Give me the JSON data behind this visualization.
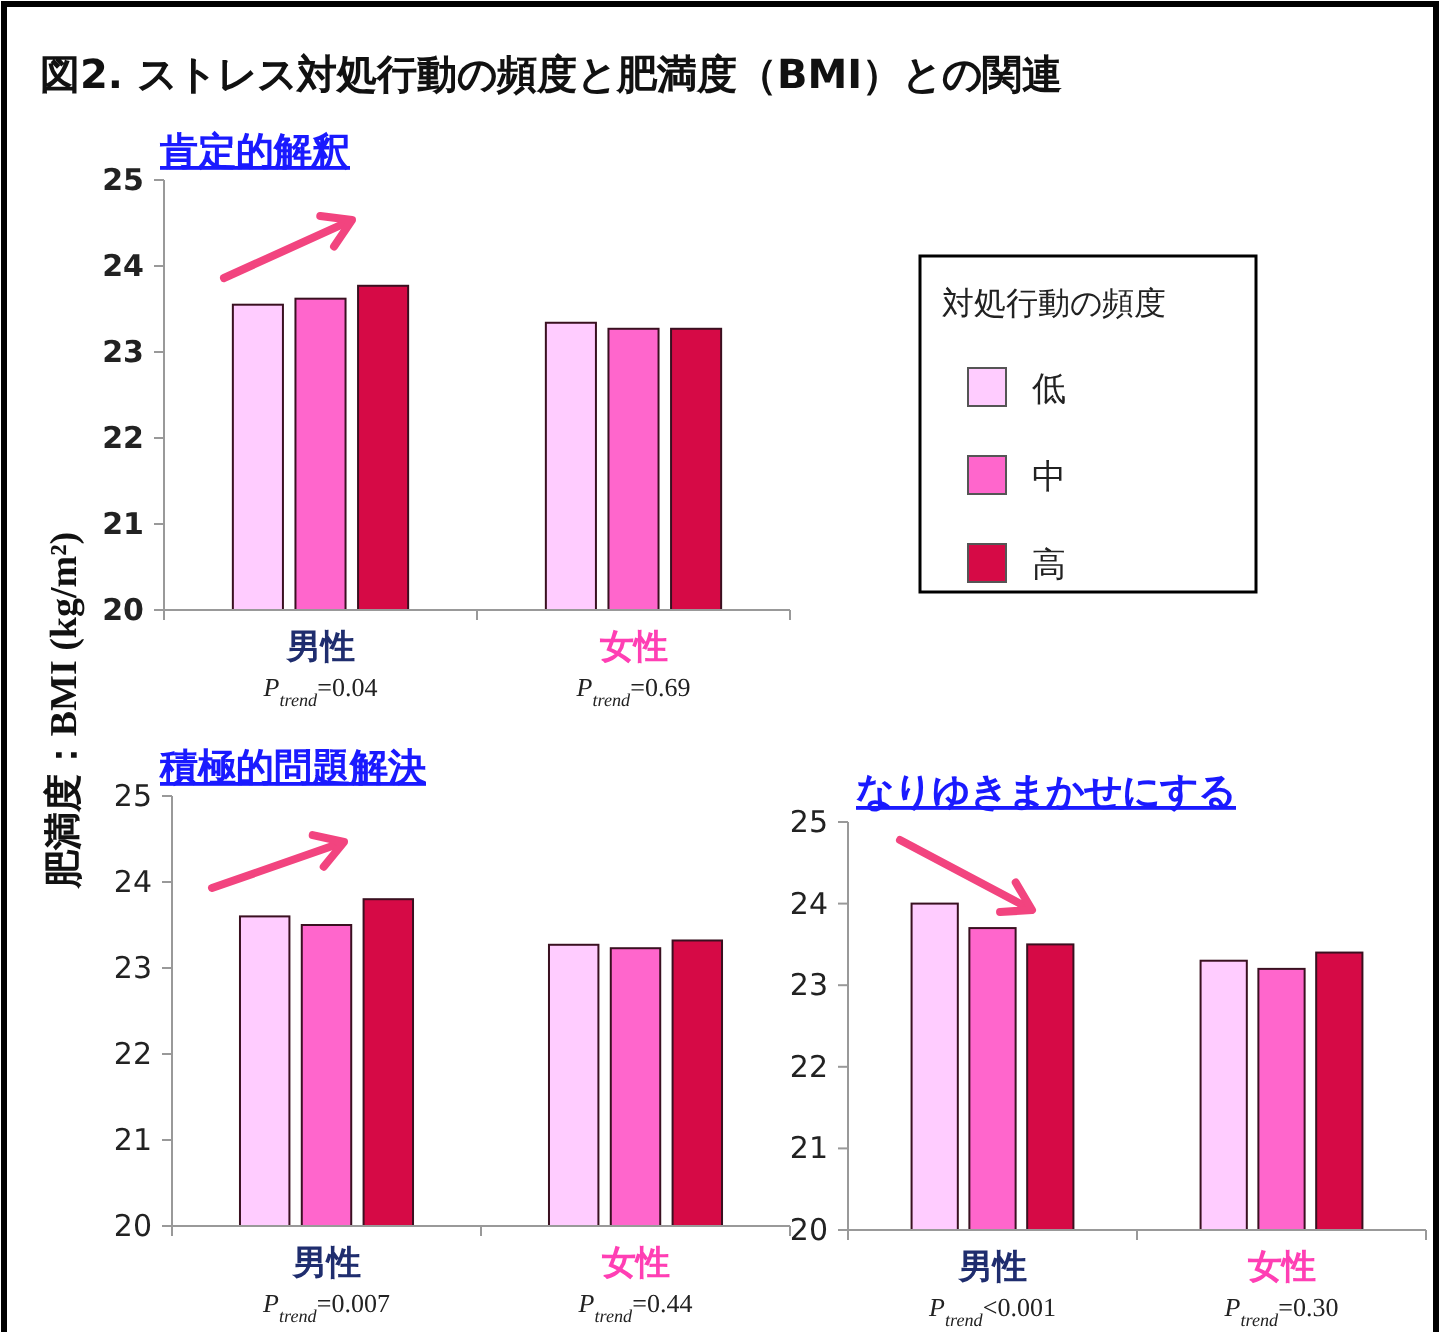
{
  "chart_data": [
    {
      "type": "bar",
      "title": "図2. ストレス対処行動の頻度と肥満度（BMI）との関連",
      "subtitle": "肯定的解釈",
      "ylabel": "肥満度：BMI (kg/m²)",
      "legend_title": "対処行動の頻度",
      "legend": "right",
      "categories": [
        "男性",
        "女性"
      ],
      "series": [
        {
          "name": "低",
          "color": "#ffccff",
          "values": [
            23.55,
            23.34
          ]
        },
        {
          "name": "中",
          "color": "#ff66cc",
          "values": [
            23.62,
            23.27
          ]
        },
        {
          "name": "高",
          "color": "#d60a46",
          "values": [
            23.77,
            23.27
          ]
        }
      ],
      "ylim": [
        20,
        25
      ],
      "yticks": [
        20,
        21,
        22,
        23,
        24,
        25
      ],
      "annotations": [
        "P$_{trend}$=0.04",
        "P$_{trend}$=0.69"
      ]
    },
    {
      "type": "bar",
      "title": "積極的問題解決",
      "categories": [
        "男性",
        "女性"
      ],
      "series": [
        {
          "color": "#ffccff",
          "values": [
            23.6,
            23.27
          ]
        },
        {
          "color": "#ff66cc",
          "values": [
            23.5,
            23.23
          ]
        },
        {
          "color": "#d60a46",
          "values": [
            23.8,
            23.32
          ]
        }
      ],
      "ylim": [
        20,
        25
      ],
      "yticks": [
        20,
        21,
        22,
        23,
        24,
        25
      ],
      "annotations": [
        "P$_{trend}$=0.007",
        "P$_{trend}$=0.44"
      ]
    },
    {
      "type": "bar",
      "title": "なりゆきまかせにする",
      "categories": [
        "男性",
        "女性"
      ],
      "series": [
        {
          "color": "#ffccff",
          "values": [
            24.0,
            23.3
          ]
        },
        {
          "color": "#ff66cc",
          "values": [
            23.7,
            23.2
          ]
        },
        {
          "color": "#d60a46",
          "values": [
            23.5,
            23.4
          ]
        }
      ],
      "ylim": [
        20,
        25
      ],
      "yticks": [
        20,
        21,
        22,
        23,
        24,
        25
      ],
      "annotations": [
        "P$_{trend}$<0.001",
        "P$_{trend}$=0.30"
      ]
    }
  ]
}
